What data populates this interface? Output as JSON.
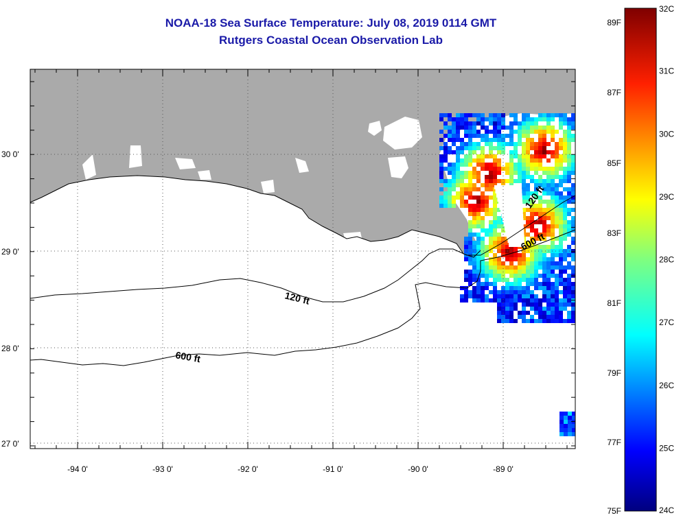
{
  "header": {
    "title": "NOAA-18 Sea Surface Temperature:  July 08, 2019 0114 GMT",
    "subtitle": "Rutgers Coastal Ocean Observation Lab"
  },
  "map": {
    "lon_labels": [
      "-94 0'",
      "-93 0'",
      "-92 0'",
      "-91 0'",
      "-90 0'",
      "-89 0'"
    ],
    "lat_labels": [
      "30 0'",
      "29 0'",
      "28 0'",
      "27 0'"
    ],
    "lon_range": [
      -94.55,
      -88.1
    ],
    "lat_range": [
      26.95,
      30.85
    ],
    "contours": [
      {
        "label": "120 ft"
      },
      {
        "label": "600 ft"
      },
      {
        "label": "120 ft"
      },
      {
        "label": "600 ft"
      }
    ],
    "colors": {
      "land": "#aaaaaa",
      "water": "#ffffff",
      "contour": "#000000"
    }
  },
  "colorbar": {
    "celsius_labels": [
      "32C",
      "31C",
      "30C",
      "29C",
      "28C",
      "27C",
      "26C",
      "25C",
      "24C"
    ],
    "fahrenheit_labels": [
      "89F",
      "87F",
      "85F",
      "83F",
      "81F",
      "79F",
      "77F",
      "75F"
    ],
    "range_c": [
      24,
      32
    ],
    "palette": "jet"
  }
}
